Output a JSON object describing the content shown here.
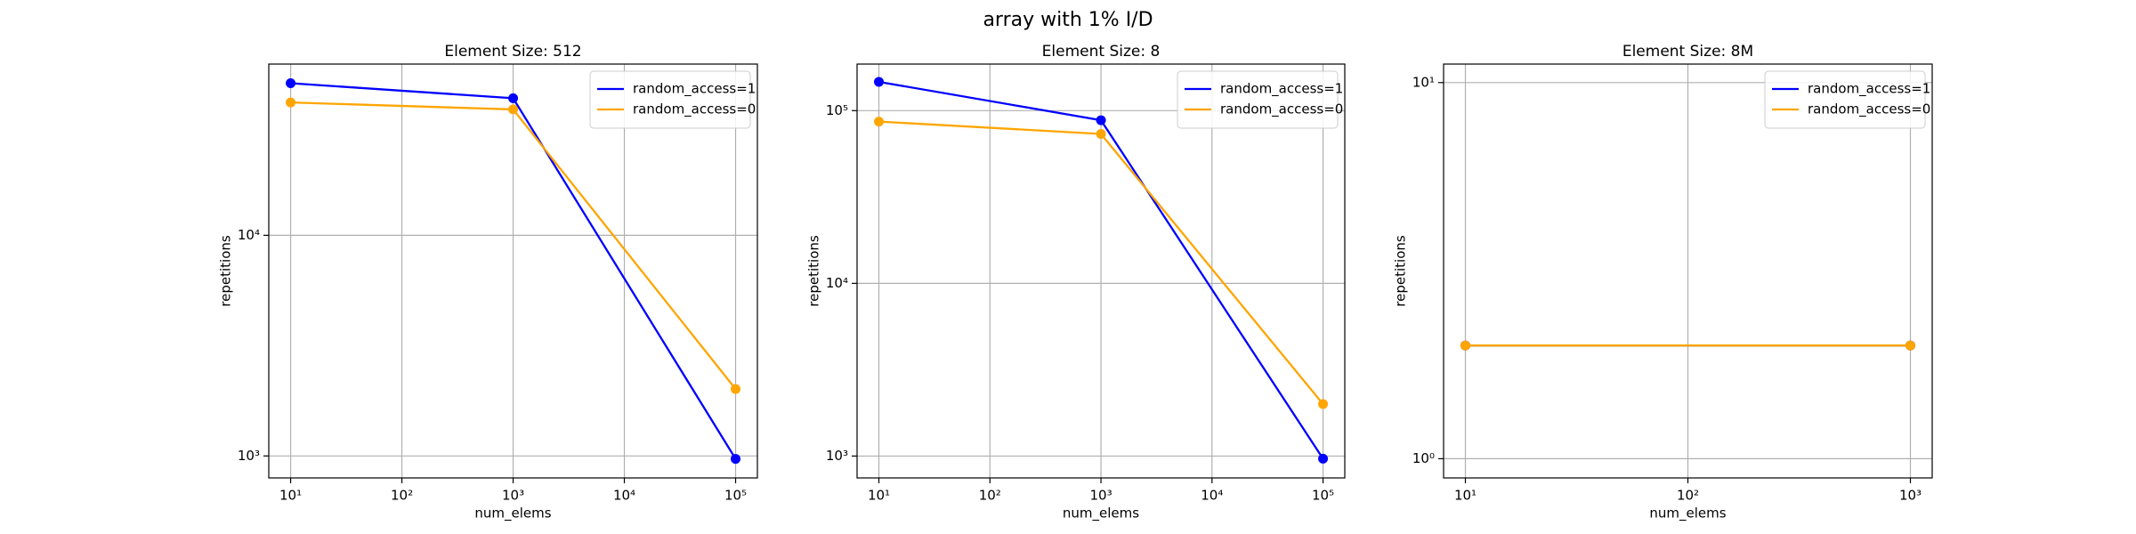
{
  "title": "array with 1% I/D",
  "chart_data": [
    {
      "type": "line",
      "title": "Element Size: 512",
      "xlabel": "num_elems",
      "ylabel": "repetitions",
      "x": [
        10,
        1000,
        100000
      ],
      "series": [
        {
          "name": "random_access=1",
          "color": "#0000ff",
          "values": [
            48900,
            41800,
            970
          ]
        },
        {
          "name": "random_access=0",
          "color": "#ffa500",
          "values": [
            40000,
            37200,
            2010
          ]
        }
      ],
      "log_x": true,
      "log_y": true,
      "grid": true,
      "legend": "upper right",
      "marker": "o",
      "xlim": [
        6.36,
        157000
      ],
      "ylim": [
        795,
        59700
      ],
      "xticks": [
        {
          "value": 10,
          "label": "10¹"
        },
        {
          "value": 100,
          "label": "10²"
        },
        {
          "value": 1000,
          "label": "10³"
        },
        {
          "value": 10000,
          "label": "10⁴"
        },
        {
          "value": 100000,
          "label": "10⁵"
        }
      ],
      "yticks": [
        {
          "value": 1000,
          "label": "10³"
        },
        {
          "value": 10000,
          "label": "10⁴"
        }
      ]
    },
    {
      "type": "line",
      "title": "Element Size: 8",
      "xlabel": "num_elems",
      "ylabel": "repetitions",
      "x": [
        10,
        1000,
        100000
      ],
      "series": [
        {
          "name": "random_access=1",
          "color": "#0000ff",
          "values": [
            146800,
            88000,
            965
          ]
        },
        {
          "name": "random_access=0",
          "color": "#ffa500",
          "values": [
            86400,
            73300,
            2000
          ]
        }
      ],
      "log_x": true,
      "log_y": true,
      "grid": true,
      "legend": "upper right",
      "marker": "o",
      "xlim": [
        6.36,
        157000
      ],
      "ylim": [
        747,
        186000
      ],
      "xticks": [
        {
          "value": 10,
          "label": "10¹"
        },
        {
          "value": 100,
          "label": "10²"
        },
        {
          "value": 1000,
          "label": "10³"
        },
        {
          "value": 10000,
          "label": "10⁴"
        },
        {
          "value": 100000,
          "label": "10⁵"
        }
      ],
      "yticks": [
        {
          "value": 1000,
          "label": "10³"
        },
        {
          "value": 10000,
          "label": "10⁴"
        },
        {
          "value": 100000,
          "label": "10⁵"
        }
      ]
    },
    {
      "type": "line",
      "title": "Element Size: 8M",
      "xlabel": "num_elems",
      "ylabel": "repetitions",
      "x": [
        10,
        1000
      ],
      "series": [
        {
          "name": "random_access=1",
          "color": "#0000ff",
          "values": [
            2,
            2
          ]
        },
        {
          "name": "random_access=0",
          "color": "#ffa500",
          "values": [
            2,
            2
          ]
        }
      ],
      "log_x": true,
      "log_y": true,
      "grid": true,
      "legend": "upper right",
      "marker": "o",
      "xlim": [
        7.98,
        1253
      ],
      "ylim": [
        0.889,
        11.2
      ],
      "xticks": [
        {
          "value": 10,
          "label": "10¹"
        },
        {
          "value": 100,
          "label": "10²"
        },
        {
          "value": 1000,
          "label": "10³"
        }
      ],
      "yticks": [
        {
          "value": 1,
          "label": "10⁰"
        },
        {
          "value": 10,
          "label": "10¹"
        }
      ]
    }
  ]
}
